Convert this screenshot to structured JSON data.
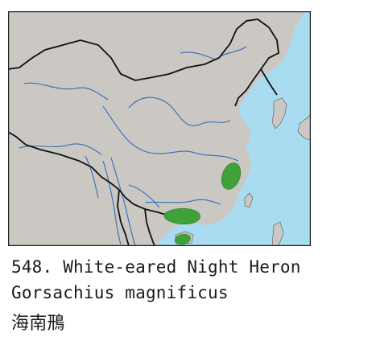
{
  "species": {
    "number_name": "548. White-eared Night Heron",
    "scientific_name": "Gorsachius magnificus",
    "chinese_name": "海南鳽"
  },
  "map": {
    "colors": {
      "land": "#cbc7c3",
      "sea": "#a9dcf0",
      "river": "#2f6fb8",
      "border": "#111111",
      "range": "#3ea23a",
      "frame": "#222222"
    },
    "range_regions": [
      "east-china-inland",
      "guangxi-guangdong",
      "hainan-island"
    ]
  }
}
